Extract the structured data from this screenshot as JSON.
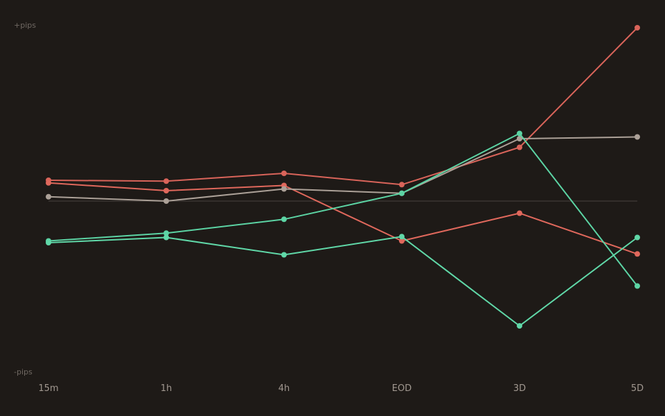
{
  "chart_data": {
    "type": "line",
    "title": "",
    "xlabel": "",
    "ylabel": "",
    "y_top_label": "+pips",
    "y_bottom_label": "-pips",
    "categories": [
      "15m",
      "1h",
      "4h",
      "EOD",
      "3D",
      "5D"
    ],
    "ylim": [
      -100,
      100
    ],
    "baseline": 0,
    "grid": false,
    "legend": "none",
    "series": [
      {
        "color": "#d9645a",
        "values": [
          12,
          11.5,
          16,
          9.5,
          31,
          100
        ]
      },
      {
        "color": "#e0685c",
        "values": [
          10.5,
          6,
          9,
          -23,
          -7,
          -30.5
        ]
      },
      {
        "color": "#aca198",
        "values": [
          2.5,
          0,
          7,
          4.5,
          36,
          37
        ]
      },
      {
        "color": "#5cd4a4",
        "values": [
          -23,
          -18.5,
          -10.5,
          4.5,
          39,
          -49
        ]
      },
      {
        "color": "#60d8a8",
        "values": [
          -24,
          -21,
          -31,
          -20.5,
          -72,
          -21
        ]
      }
    ],
    "colors": {
      "background": "#1e1a17",
      "baseline": "#3a3532",
      "y_label": "#6f6862",
      "x_tick": "#a19890"
    }
  }
}
